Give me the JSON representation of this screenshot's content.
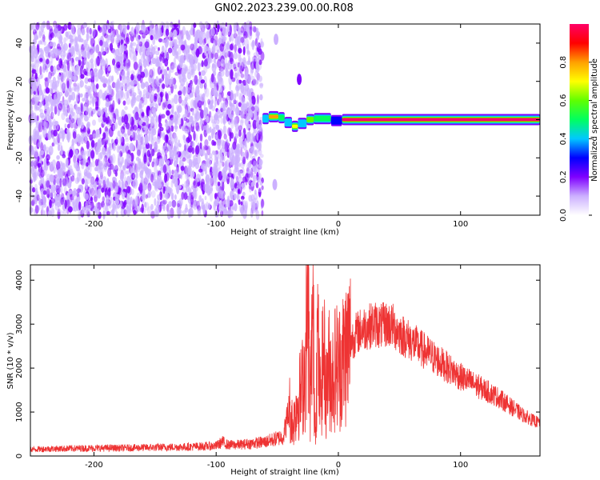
{
  "title": "GN02.2023.239.00.00.R08",
  "chart_data": [
    {
      "type": "heatmap",
      "xlabel": "Height of straight line (km)",
      "ylabel": "Frequency (Hz)",
      "xlim": [
        -252,
        165
      ],
      "ylim": [
        -50,
        50
      ],
      "xticks": [
        -200,
        -100,
        0,
        100
      ],
      "yticks": [
        -40,
        -20,
        0,
        20,
        40
      ],
      "xtick_labels": [
        "-200",
        "-100",
        "0",
        "100"
      ],
      "ytick_labels": [
        "-40",
        "-20",
        "0",
        "20",
        "40"
      ],
      "noise_region": [
        -252,
        -62
      ],
      "signal_segments": [
        {
          "x": [
            -62,
            -57
          ],
          "y": 0.5,
          "level": 0.35
        },
        {
          "x": [
            -57,
            -49
          ],
          "y": 1.5,
          "level": 0.75
        },
        {
          "x": [
            -49,
            -44
          ],
          "y": 1.0,
          "level": 0.45
        },
        {
          "x": [
            -44,
            -38
          ],
          "y": -1.5,
          "level": 0.35
        },
        {
          "x": [
            -38,
            -33
          ],
          "y": -3.5,
          "level": 0.7
        },
        {
          "x": [
            -33,
            -26
          ],
          "y": -2.0,
          "level": 0.35
        },
        {
          "x": [
            -26,
            -20
          ],
          "y": 0.0,
          "level": 0.55
        },
        {
          "x": [
            -20,
            -6
          ],
          "y": 0.5,
          "level": 0.45
        },
        {
          "x": [
            -6,
            3
          ],
          "y": -0.5,
          "level": 0.3
        },
        {
          "x": [
            3,
            165
          ],
          "y": 0.0,
          "level": 1.0
        }
      ],
      "artifacts": [
        {
          "x": -32,
          "y": 21,
          "level": 0.15
        },
        {
          "x": -51,
          "y": 42,
          "level": 0.08
        },
        {
          "x": -52,
          "y": -34,
          "level": 0.08
        }
      ],
      "grid": false
    },
    {
      "type": "colorbar",
      "label": "Normalized spectral amplitude",
      "range": [
        0.0,
        1.0
      ],
      "ticks": [
        0.0,
        0.2,
        0.4,
        0.6,
        0.8
      ],
      "tick_labels": [
        "0.0",
        "0.2",
        "0.4",
        "0.6",
        "0.8"
      ],
      "colors": [
        "#ffffff",
        "#ccb0ff",
        "#7f00ff",
        "#0000ff",
        "#00c8ff",
        "#00ff60",
        "#60ff00",
        "#ffff00",
        "#ffa000",
        "#ff0000",
        "#ff0066"
      ]
    },
    {
      "type": "line",
      "xlabel": "Height of straight line (km)",
      "ylabel": "SNR (10 * v/v)",
      "xlim": [
        -252,
        165
      ],
      "ylim": [
        0,
        4350
      ],
      "xticks": [
        -200,
        -100,
        0,
        100
      ],
      "yticks": [
        0,
        1000,
        2000,
        3000,
        4000
      ],
      "xtick_labels": [
        "-200",
        "-100",
        "0",
        "100"
      ],
      "ytick_labels": [
        "0",
        "1000",
        "2000",
        "3000",
        "4000"
      ],
      "series": [
        {
          "color": "#ee3333",
          "x": [
            -252,
            -240,
            -220,
            -200,
            -180,
            -160,
            -140,
            -120,
            -100,
            -95,
            -90,
            -80,
            -70,
            -60,
            -50,
            -45,
            -40,
            -37,
            -34,
            -30,
            -27,
            -25,
            -23,
            -21,
            -19,
            -17,
            -15,
            -12,
            -10,
            -8,
            -5,
            -2,
            0,
            5,
            10,
            15,
            20,
            25,
            30,
            35,
            40,
            45,
            50,
            60,
            70,
            80,
            90,
            100,
            110,
            120,
            130,
            140,
            150,
            160,
            165
          ],
          "y": [
            150,
            160,
            170,
            180,
            180,
            190,
            200,
            210,
            230,
            320,
            250,
            260,
            290,
            320,
            400,
            450,
            1100,
            700,
            1200,
            1500,
            2000,
            4000,
            1000,
            3400,
            600,
            2800,
            1200,
            2400,
            1400,
            2000,
            1800,
            2100,
            2000,
            2300,
            2600,
            2800,
            2900,
            2950,
            3000,
            2950,
            3000,
            2950,
            2800,
            2600,
            2400,
            2200,
            2000,
            1800,
            1650,
            1500,
            1350,
            1150,
            950,
            800,
            750
          ]
        }
      ],
      "grid": false
    }
  ]
}
